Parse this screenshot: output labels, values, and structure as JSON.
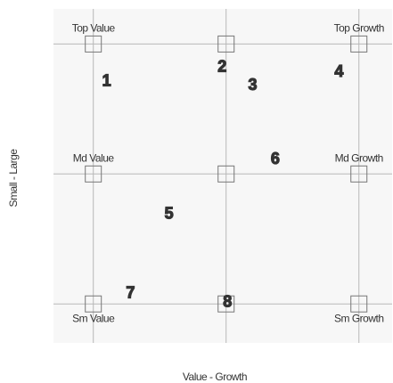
{
  "chart_data": {
    "type": "scatter",
    "x_label": "Value - Growth",
    "y_label": "Small - Large",
    "xlim": [
      -1.3,
      1.25
    ],
    "ylim": [
      -1.3,
      1.27
    ],
    "xticks": [
      -1,
      0,
      1
    ],
    "yticks": [
      -1,
      0,
      1
    ],
    "grid": true,
    "box_labels": [
      "Top Value",
      "Top Growth",
      "Md Value",
      "Md Growth",
      "Sm Value",
      "Sm Growth"
    ],
    "point_labels": [
      "1",
      "2",
      "3",
      "4",
      "5",
      "6",
      "7",
      "8"
    ],
    "x": [
      -0.9,
      -0.03,
      0.2,
      0.85,
      -0.43,
      0.37,
      -0.72,
      0.01
    ],
    "y": [
      0.71,
      0.82,
      0.68,
      0.78,
      -0.31,
      0.11,
      -0.92,
      -0.99
    ],
    "colors": [
      "#e8643c",
      "#f4b183",
      "#fff1d0",
      "#c8ecd8",
      "#7090d0",
      "#a0a0a0",
      "#f06292",
      "#b5541e"
    ]
  }
}
